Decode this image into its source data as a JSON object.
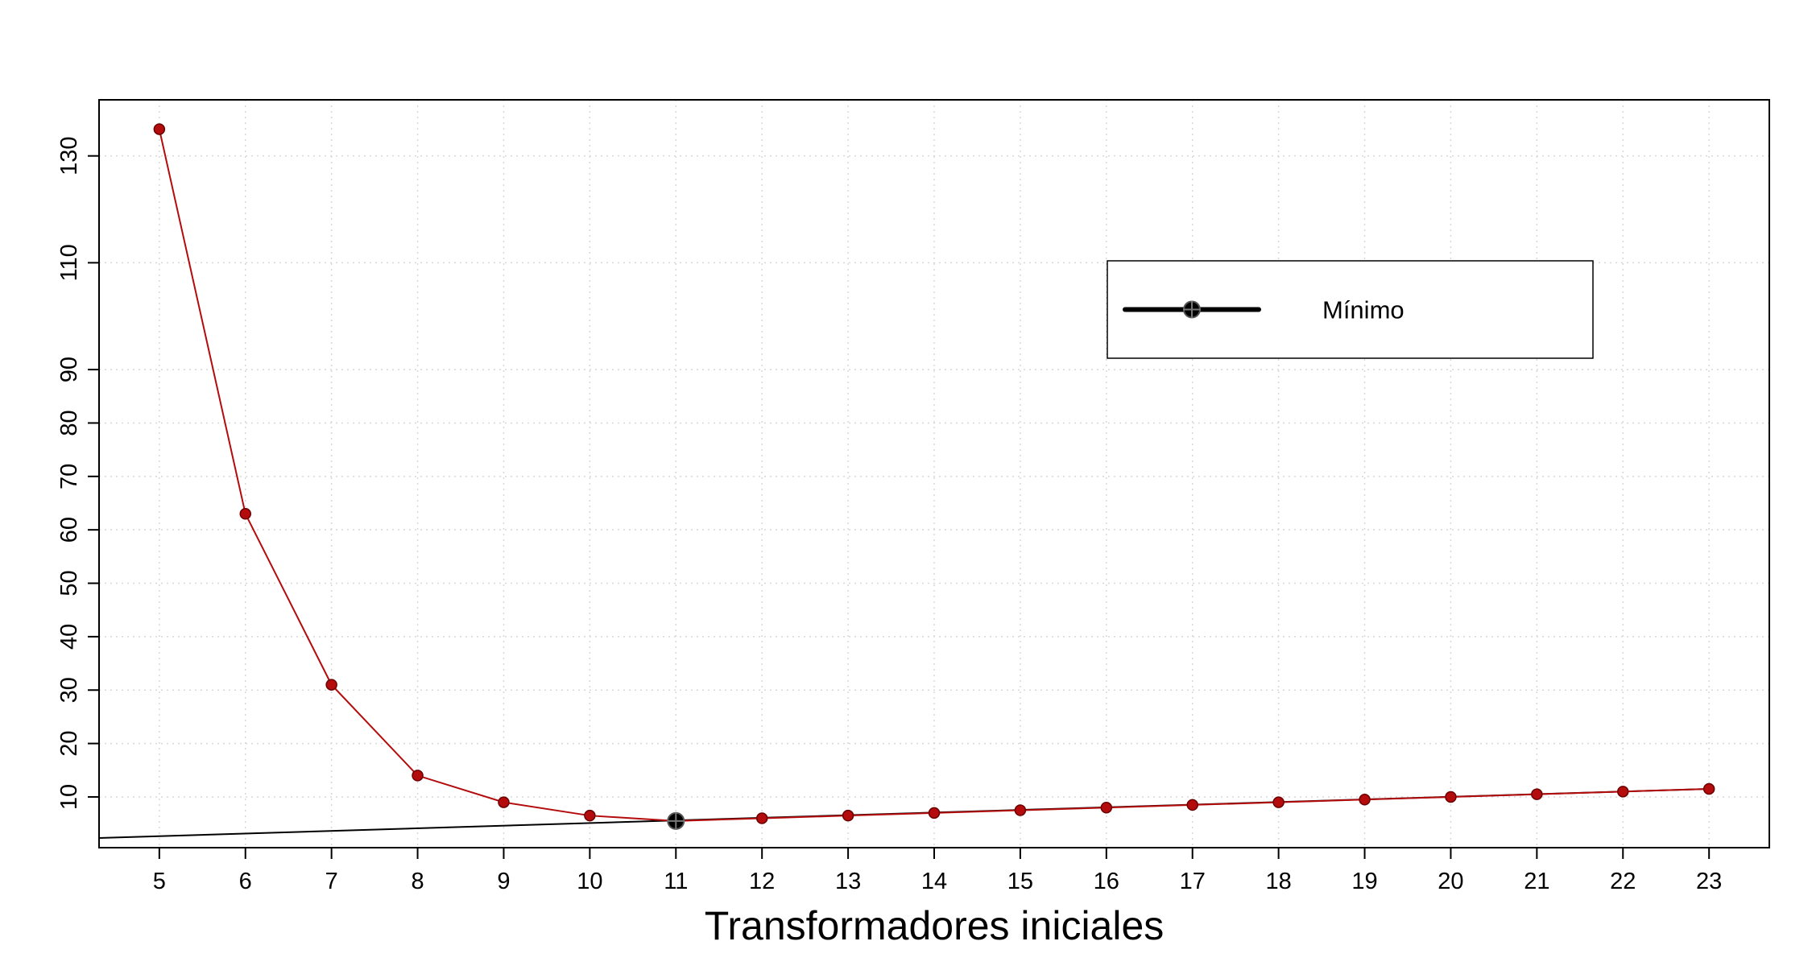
{
  "chart_data": {
    "type": "line",
    "title": "",
    "xlabel": "Transformadores iniciales",
    "ylabel": "",
    "x": [
      5,
      6,
      7,
      8,
      9,
      10,
      11,
      12,
      13,
      14,
      15,
      16,
      17,
      18,
      19,
      20,
      21,
      22,
      23
    ],
    "xticks": [
      5,
      6,
      7,
      8,
      9,
      10,
      11,
      12,
      13,
      14,
      15,
      16,
      17,
      18,
      19,
      20,
      21,
      22,
      23
    ],
    "yticks": [
      10,
      20,
      30,
      40,
      50,
      60,
      70,
      80,
      90,
      110,
      130
    ],
    "xlim": [
      4.3,
      23.7
    ],
    "ylim": [
      0.5,
      140.5
    ],
    "grid": true,
    "legend_position": "top-right",
    "series": [
      {
        "name": "",
        "color": "#b40c0c",
        "values": [
          135,
          63,
          31,
          14,
          9,
          6.5,
          5.5,
          6,
          6.5,
          7,
          7.5,
          8,
          8.5,
          9,
          9.5,
          10,
          10.5,
          11,
          11.5
        ]
      }
    ],
    "trend_line": {
      "color": "#000000",
      "points": [
        [
          4.3,
          2.3
        ],
        [
          23,
          11.5
        ]
      ]
    },
    "minimum_point": {
      "x": 11,
      "y": 5.5,
      "color": "#000000"
    },
    "legend": {
      "entries": [
        {
          "label": "Mínimo",
          "color": "#000000",
          "marker": "circle-cross"
        }
      ]
    }
  }
}
